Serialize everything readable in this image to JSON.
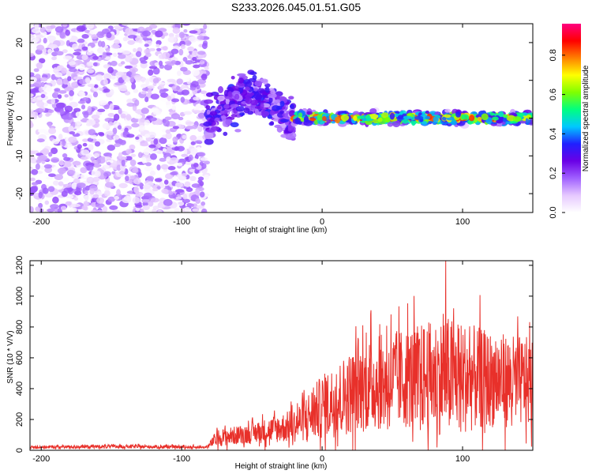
{
  "title": "S233.2026.045.01.51.G05",
  "chart_data": [
    {
      "type": "heatmap",
      "name": "spectrogram",
      "xlabel": "Height of straight line (km)",
      "ylabel": "Frequency (Hz)",
      "xlim": [
        -208,
        150
      ],
      "ylim": [
        -25,
        25
      ],
      "xticks": [
        -200,
        -100,
        0,
        100
      ],
      "yticks": [
        -20,
        -10,
        0,
        10,
        20
      ],
      "colorbar": {
        "label": "Normalized spectral amplitude",
        "range": [
          0,
          0.96
        ],
        "ticks": [
          0.0,
          0.2,
          0.4,
          0.6,
          0.8
        ],
        "colors": [
          "#ffffff",
          "#e6c8ff",
          "#a060ff",
          "#6a00e6",
          "#2020ff",
          "#00c8ff",
          "#00ff80",
          "#80ff00",
          "#ffff00",
          "#ff8000",
          "#ff0000",
          "#ff0080"
        ]
      },
      "regions": [
        {
          "x": [
            -208,
            -82
          ],
          "freq_spread": "full",
          "amplitude": [
            0.0,
            0.2
          ],
          "description": "noise"
        },
        {
          "x": [
            -82,
            -20
          ],
          "freq_center": [
            -2,
            6
          ],
          "freq_spread": 5,
          "amplitude": [
            0.1,
            0.35
          ]
        },
        {
          "x": [
            -20,
            150
          ],
          "freq_center": 0,
          "freq_spread": 1.5,
          "amplitude": [
            0.3,
            0.9
          ]
        }
      ]
    },
    {
      "type": "line",
      "name": "snr",
      "xlabel": "Height of straight line (km)",
      "ylabel": "SNR (10 * V/V)",
      "xlim": [
        -208,
        150
      ],
      "ylim": [
        0,
        1230
      ],
      "xticks": [
        -200,
        -100,
        0,
        100
      ],
      "yticks": [
        0,
        200,
        400,
        600,
        800,
        1000,
        1200
      ],
      "color": "#e8302a",
      "envelope": [
        {
          "x": -208,
          "base": 20,
          "amp": 15
        },
        {
          "x": -150,
          "base": 25,
          "amp": 20
        },
        {
          "x": -82,
          "base": 20,
          "amp": 15
        },
        {
          "x": -75,
          "base": 80,
          "amp": 90
        },
        {
          "x": -50,
          "base": 110,
          "amp": 110
        },
        {
          "x": -20,
          "base": 160,
          "amp": 180
        },
        {
          "x": 0,
          "base": 280,
          "amp": 350
        },
        {
          "x": 30,
          "base": 420,
          "amp": 500
        },
        {
          "x": 60,
          "base": 470,
          "amp": 550
        },
        {
          "x": 90,
          "base": 480,
          "amp": 650
        },
        {
          "x": 120,
          "base": 460,
          "amp": 520
        },
        {
          "x": 150,
          "base": 440,
          "amp": 480
        }
      ],
      "peak": {
        "x": 88,
        "y": 1230
      }
    }
  ]
}
